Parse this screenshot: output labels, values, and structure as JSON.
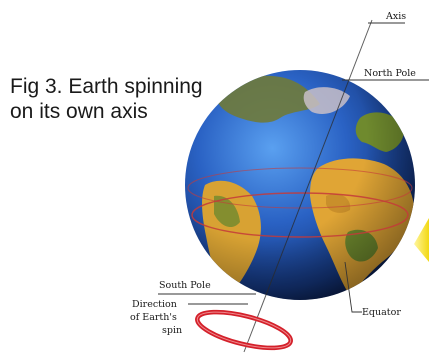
{
  "caption": {
    "line1": "Fig 3. Earth spinning",
    "line2": "on its own axis"
  },
  "labels": {
    "axis": "Axis",
    "north_pole": "North Pole",
    "south_pole": "South Pole",
    "equator": "Equator",
    "spin_line1": "Direction",
    "spin_line2": "of Earth's",
    "spin_line3": "spin"
  },
  "colors": {
    "ocean": "#1f56b8",
    "land": "#d8a233",
    "land_green": "#6f8a2e",
    "equator_line": "#c43a3a",
    "spin_arrow": "#d4202a",
    "sun_glow": "#f2e52a"
  }
}
